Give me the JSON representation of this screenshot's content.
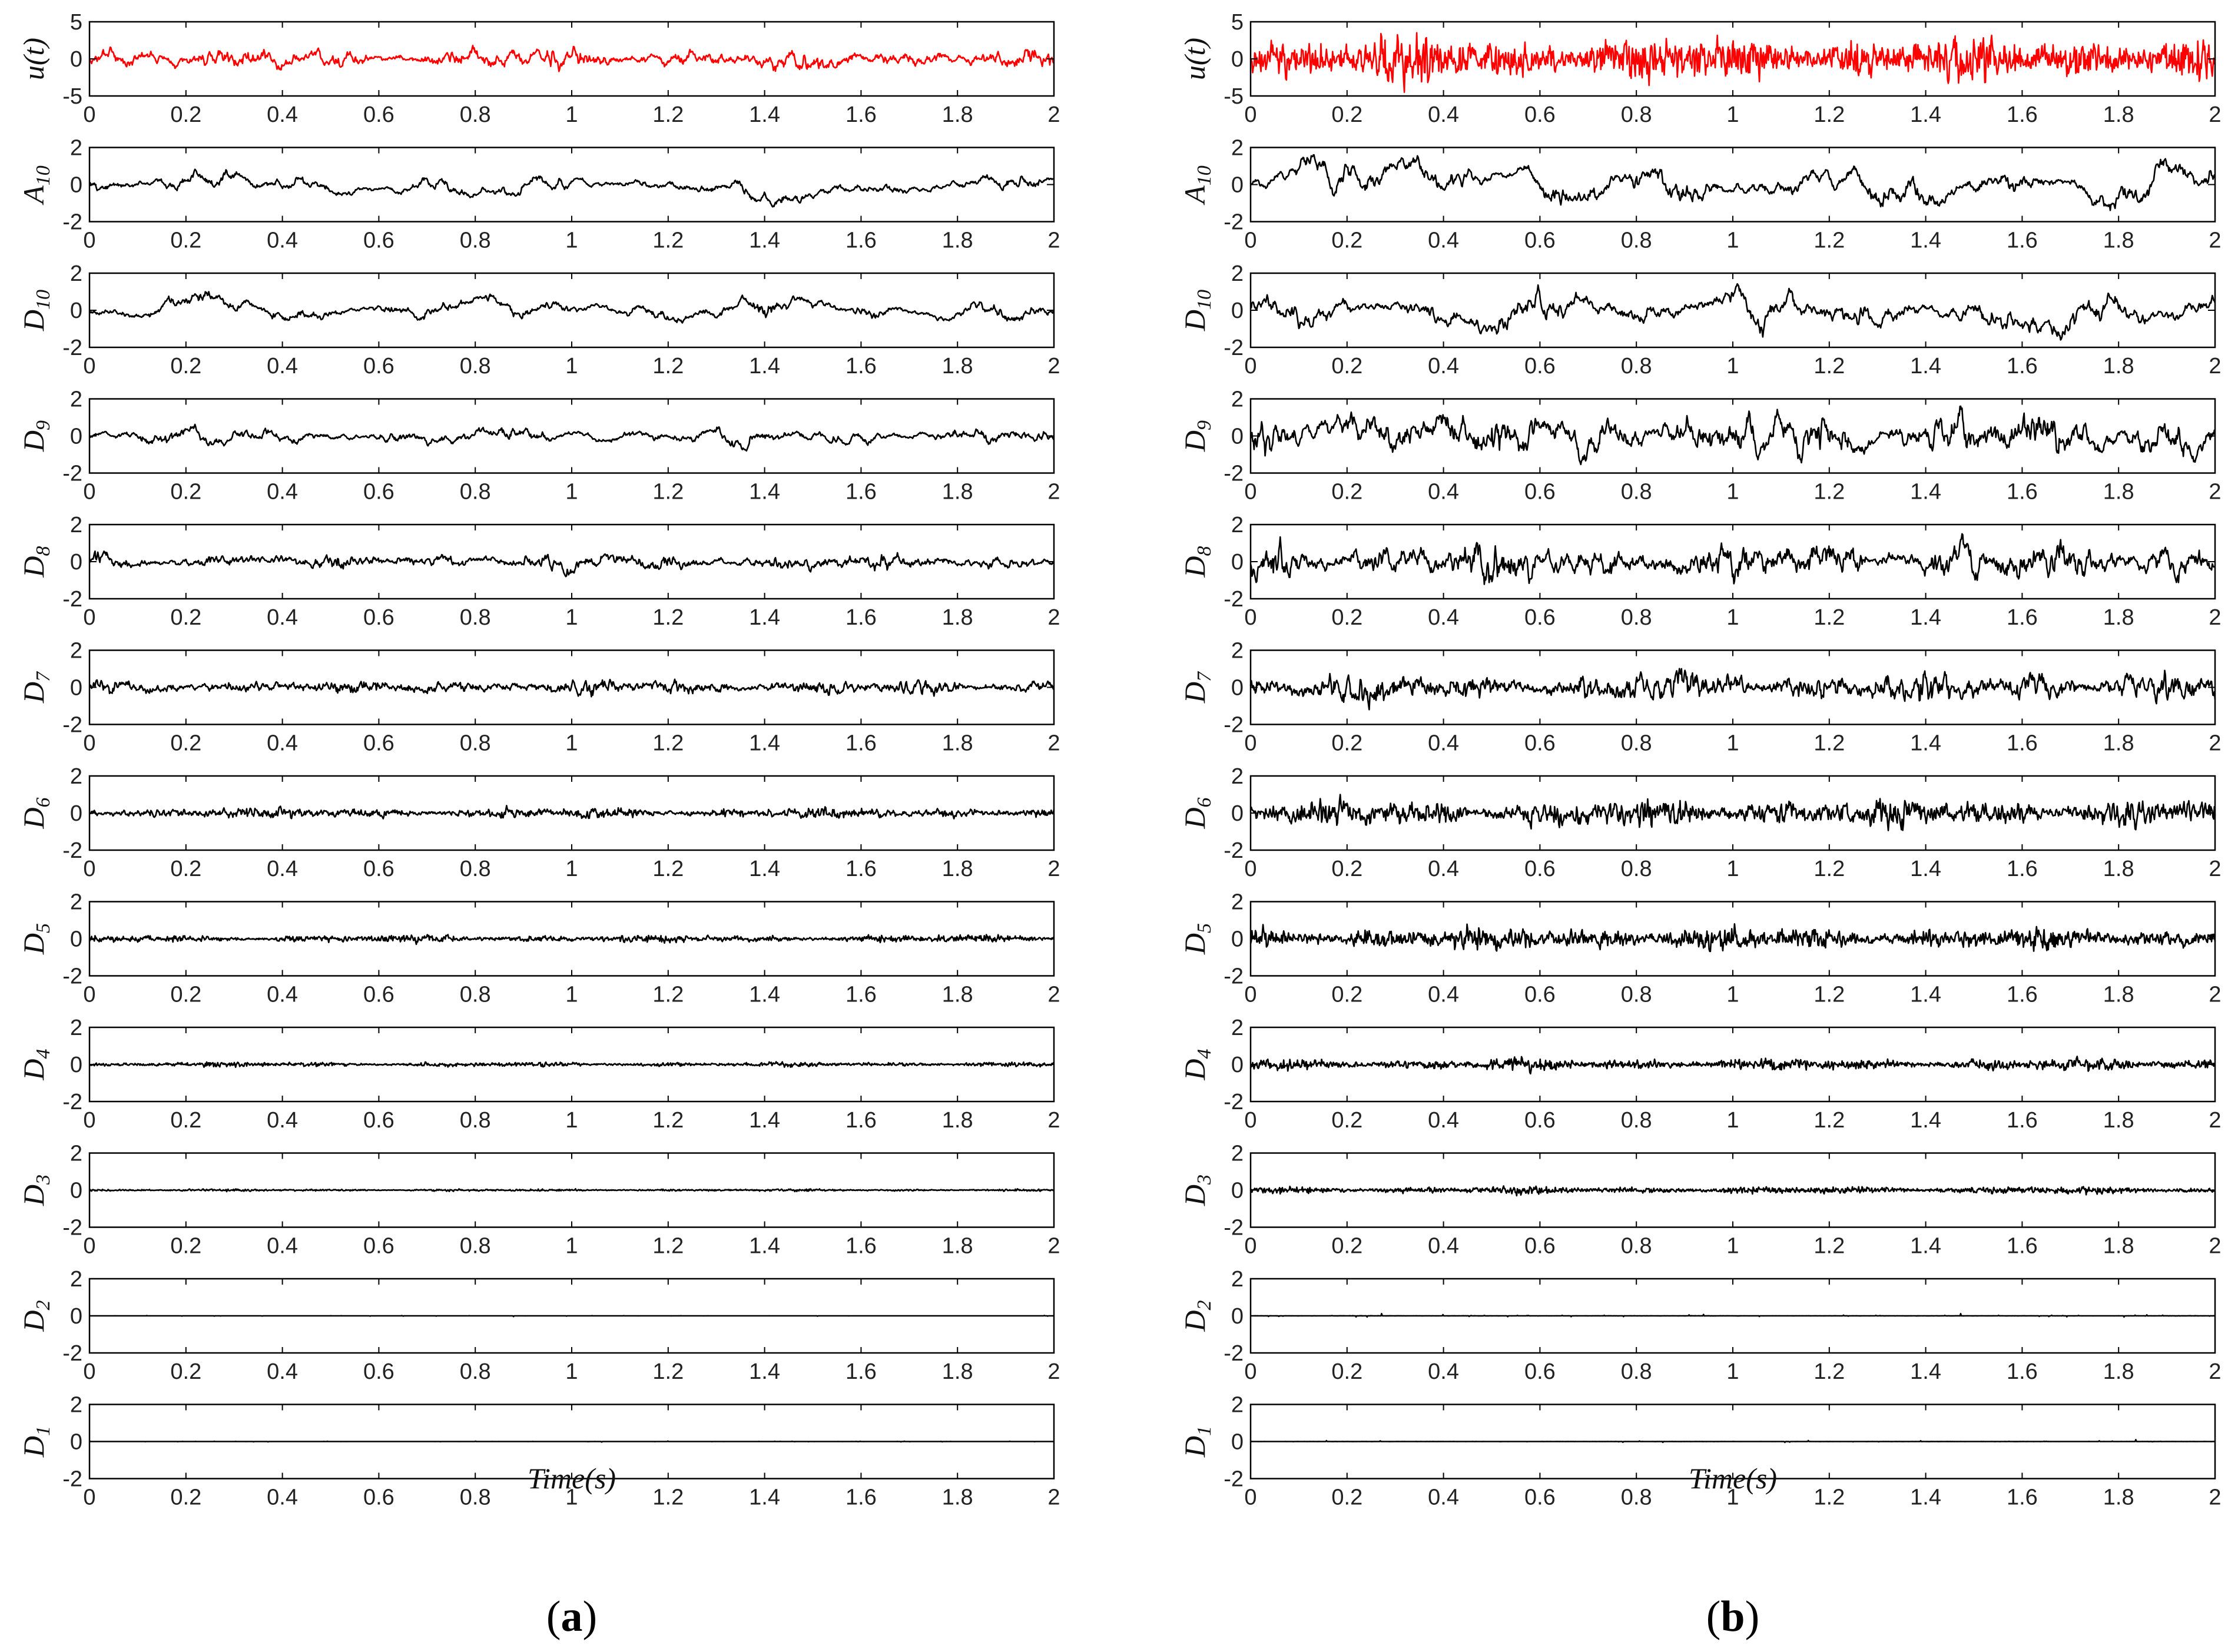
{
  "figure": {
    "colors": {
      "signal": "#ff0000",
      "component": "#000000",
      "axis": "#000000"
    },
    "x_axis_title": "Time(s)",
    "x_tick_labels": [
      "0",
      "0.2",
      "0.4",
      "0.6",
      "0.8",
      "1",
      "1.2",
      "1.4",
      "1.6",
      "1.8",
      "2"
    ],
    "panels": [
      {
        "caption_open": "(",
        "caption_letter": "a",
        "caption_close": ")"
      },
      {
        "caption_open": "(",
        "caption_letter": "b",
        "caption_close": ")"
      }
    ]
  },
  "chart_data": [
    {
      "type": "line",
      "panel": "a",
      "xlabel": "Time(s)",
      "xlim": [
        0,
        2
      ],
      "xticks": [
        0,
        0.2,
        0.4,
        0.6,
        0.8,
        1,
        1.2,
        1.4,
        1.6,
        1.8,
        2
      ],
      "series": [
        {
          "name": "u(t)",
          "label_main": "u(t)",
          "label_sub": "",
          "color": "#ff0000",
          "ylim": [
            -5,
            5
          ],
          "yticks": [
            -5,
            0,
            5
          ],
          "approx_peak": 1.8,
          "smoothness": 0.85
        },
        {
          "name": "A10",
          "label_main": "A",
          "label_sub": "10",
          "color": "#000000",
          "ylim": [
            -2,
            2
          ],
          "yticks": [
            -2,
            0,
            2
          ],
          "approx_peak": 1.2,
          "smoothness": 0.985
        },
        {
          "name": "D10",
          "label_main": "D",
          "label_sub": "10",
          "color": "#000000",
          "ylim": [
            -2,
            2
          ],
          "yticks": [
            -2,
            0,
            2
          ],
          "approx_peak": 1.0,
          "smoothness": 0.96
        },
        {
          "name": "D9",
          "label_main": "D",
          "label_sub": "9",
          "color": "#000000",
          "ylim": [
            -2,
            2
          ],
          "yticks": [
            -2,
            0,
            2
          ],
          "approx_peak": 0.8,
          "smoothness": 0.92
        },
        {
          "name": "D8",
          "label_main": "D",
          "label_sub": "8",
          "color": "#000000",
          "ylim": [
            -2,
            2
          ],
          "yticks": [
            -2,
            0,
            2
          ],
          "approx_peak": 0.8,
          "smoothness": 0.85
        },
        {
          "name": "D7",
          "label_main": "D",
          "label_sub": "7",
          "color": "#000000",
          "ylim": [
            -2,
            2
          ],
          "yticks": [
            -2,
            0,
            2
          ],
          "approx_peak": 0.5,
          "smoothness": 0.7
        },
        {
          "name": "D6",
          "label_main": "D",
          "label_sub": "6",
          "color": "#000000",
          "ylim": [
            -2,
            2
          ],
          "yticks": [
            -2,
            0,
            2
          ],
          "approx_peak": 0.4,
          "smoothness": 0.5
        },
        {
          "name": "D5",
          "label_main": "D",
          "label_sub": "5",
          "color": "#000000",
          "ylim": [
            -2,
            2
          ],
          "yticks": [
            -2,
            0,
            2
          ],
          "approx_peak": 0.3,
          "smoothness": 0.3
        },
        {
          "name": "D4",
          "label_main": "D",
          "label_sub": "4",
          "color": "#000000",
          "ylim": [
            -2,
            2
          ],
          "yticks": [
            -2,
            0,
            2
          ],
          "approx_peak": 0.15,
          "smoothness": 0.2
        },
        {
          "name": "D3",
          "label_main": "D",
          "label_sub": "3",
          "color": "#000000",
          "ylim": [
            -2,
            2
          ],
          "yticks": [
            -2,
            0,
            2
          ],
          "approx_peak": 0.08,
          "smoothness": 0.1
        },
        {
          "name": "D2",
          "label_main": "D",
          "label_sub": "2",
          "color": "#000000",
          "ylim": [
            -2,
            2
          ],
          "yticks": [
            -2,
            0,
            2
          ],
          "approx_peak": 0.04,
          "smoothness": 0.0
        },
        {
          "name": "D1",
          "label_main": "D",
          "label_sub": "1",
          "color": "#000000",
          "ylim": [
            -2,
            2
          ],
          "yticks": [
            -2,
            0,
            2
          ],
          "approx_peak": 0.03,
          "smoothness": 0.0
        }
      ]
    },
    {
      "type": "line",
      "panel": "b",
      "xlabel": "Time(s)",
      "xlim": [
        0,
        2
      ],
      "xticks": [
        0,
        0.2,
        0.4,
        0.6,
        0.8,
        1,
        1.2,
        1.4,
        1.6,
        1.8,
        2
      ],
      "series": [
        {
          "name": "u(t)",
          "label_main": "u(t)",
          "label_sub": "",
          "color": "#ff0000",
          "ylim": [
            -5,
            5
          ],
          "yticks": [
            -5,
            0,
            5
          ],
          "approx_peak": 4.5,
          "smoothness": 0.3
        },
        {
          "name": "A10",
          "label_main": "A",
          "label_sub": "10",
          "color": "#000000",
          "ylim": [
            -2,
            2
          ],
          "yticks": [
            -2,
            0,
            2
          ],
          "approx_peak": 1.6,
          "smoothness": 0.985
        },
        {
          "name": "D10",
          "label_main": "D",
          "label_sub": "10",
          "color": "#000000",
          "ylim": [
            -2,
            2
          ],
          "yticks": [
            -2,
            0,
            2
          ],
          "approx_peak": 1.6,
          "smoothness": 0.96
        },
        {
          "name": "D9",
          "label_main": "D",
          "label_sub": "9",
          "color": "#000000",
          "ylim": [
            -2,
            2
          ],
          "yticks": [
            -2,
            0,
            2
          ],
          "approx_peak": 1.6,
          "smoothness": 0.92
        },
        {
          "name": "D8",
          "label_main": "D",
          "label_sub": "8",
          "color": "#000000",
          "ylim": [
            -2,
            2
          ],
          "yticks": [
            -2,
            0,
            2
          ],
          "approx_peak": 1.5,
          "smoothness": 0.85
        },
        {
          "name": "D7",
          "label_main": "D",
          "label_sub": "7",
          "color": "#000000",
          "ylim": [
            -2,
            2
          ],
          "yticks": [
            -2,
            0,
            2
          ],
          "approx_peak": 1.2,
          "smoothness": 0.7
        },
        {
          "name": "D6",
          "label_main": "D",
          "label_sub": "6",
          "color": "#000000",
          "ylim": [
            -2,
            2
          ],
          "yticks": [
            -2,
            0,
            2
          ],
          "approx_peak": 1.0,
          "smoothness": 0.5
        },
        {
          "name": "D5",
          "label_main": "D",
          "label_sub": "5",
          "color": "#000000",
          "ylim": [
            -2,
            2
          ],
          "yticks": [
            -2,
            0,
            2
          ],
          "approx_peak": 0.8,
          "smoothness": 0.3
        },
        {
          "name": "D4",
          "label_main": "D",
          "label_sub": "4",
          "color": "#000000",
          "ylim": [
            -2,
            2
          ],
          "yticks": [
            -2,
            0,
            2
          ],
          "approx_peak": 0.5,
          "smoothness": 0.2
        },
        {
          "name": "D3",
          "label_main": "D",
          "label_sub": "3",
          "color": "#000000",
          "ylim": [
            -2,
            2
          ],
          "yticks": [
            -2,
            0,
            2
          ],
          "approx_peak": 0.3,
          "smoothness": 0.1
        },
        {
          "name": "D2",
          "label_main": "D",
          "label_sub": "2",
          "color": "#000000",
          "ylim": [
            -2,
            2
          ],
          "yticks": [
            -2,
            0,
            2
          ],
          "approx_peak": 0.12,
          "smoothness": 0.0
        },
        {
          "name": "D1",
          "label_main": "D",
          "label_sub": "1",
          "color": "#000000",
          "ylim": [
            -2,
            2
          ],
          "yticks": [
            -2,
            0,
            2
          ],
          "approx_peak": 0.1,
          "smoothness": 0.0
        }
      ]
    }
  ]
}
